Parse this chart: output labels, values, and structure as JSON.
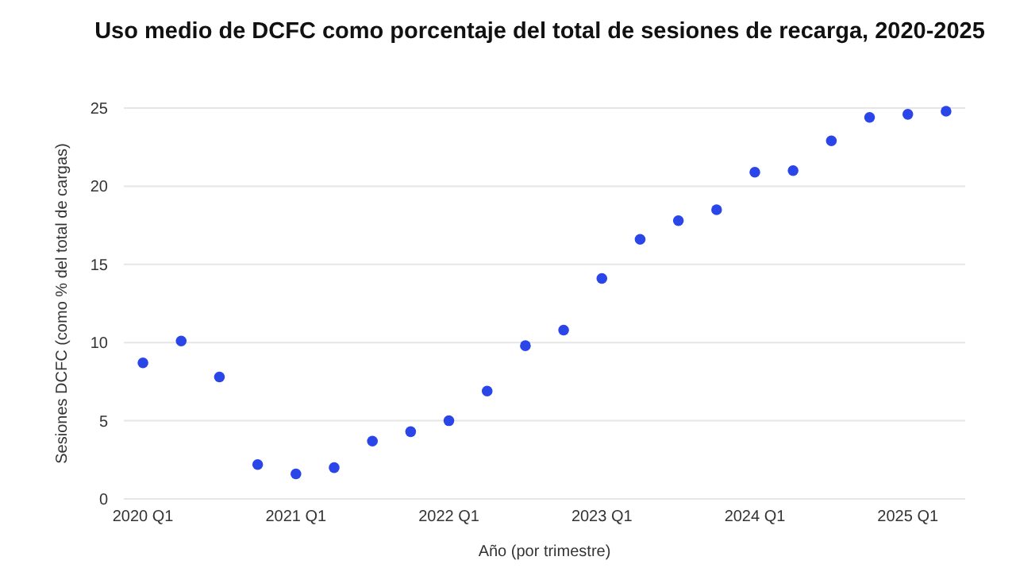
{
  "chart_data": {
    "type": "scatter",
    "title": "Uso medio de DCFC como porcentaje del total de sesiones de recarga, 2020-2025",
    "xlabel": "Año (por trimestre)",
    "ylabel": "Sesiones DCFC (como % del total de cargas)",
    "categories": [
      "2020 Q1",
      null,
      null,
      null,
      "2021 Q1",
      null,
      null,
      null,
      "2022 Q1",
      null,
      null,
      null,
      "2023 Q1",
      null,
      null,
      null,
      "2024 Q1",
      null,
      null,
      null,
      "2025 Q1",
      null
    ],
    "series": [
      {
        "color": "#2a45e8",
        "values": [
          8.7,
          10.1,
          7.8,
          2.2,
          1.6,
          2.0,
          3.7,
          4.3,
          5.0,
          6.9,
          9.8,
          10.8,
          14.1,
          16.6,
          17.8,
          18.5,
          20.9,
          21.0,
          22.9,
          24.4,
          24.6,
          24.8
        ]
      }
    ],
    "ylim": [
      0,
      25
    ],
    "yticks": [
      0,
      5,
      10,
      15,
      20,
      25
    ],
    "grid": "y",
    "marker": "circle"
  }
}
